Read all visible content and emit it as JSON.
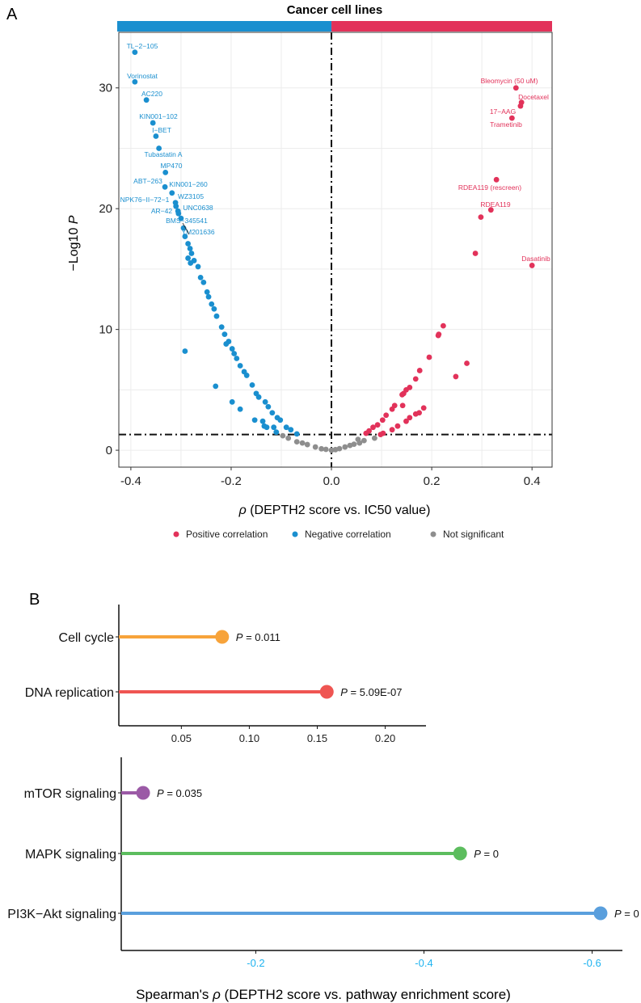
{
  "chart_data": [
    {
      "panel": "A",
      "type": "scatter",
      "title": "Cancer cell lines",
      "xlabel_symbol": "ρ",
      "xlabel": "(DEPTH2 score vs. IC50 value)",
      "ylabel_prefix": "−Log10",
      "ylabel_symbol": "P",
      "xlim": [
        -0.424,
        0.44
      ],
      "ylim": [
        -1.4,
        34.6
      ],
      "xticks": [
        "-0.4",
        "-0.2",
        "0.0",
        "0.2",
        "0.4"
      ],
      "xtick_values": [
        -0.4,
        -0.2,
        0.0,
        0.2,
        0.4
      ],
      "yticks": [
        "0",
        "10",
        "20",
        "30"
      ],
      "ytick_values": [
        0,
        10,
        20,
        30
      ],
      "grid": true,
      "reference_lines": {
        "x": 0,
        "y": 1.3
      },
      "header_colors": {
        "negative": "#1a8fcf",
        "positive": "#e2325a"
      },
      "legend_position": "bottom",
      "legend": [
        {
          "label": "Positive correlation",
          "color": "#e2325a"
        },
        {
          "label": "Negative correlation",
          "color": "#1a8fcf"
        },
        {
          "label": "Not significant",
          "color": "#8e8e8e"
        }
      ],
      "series": [
        {
          "name": "Negative correlation",
          "color": "#1a8fcf",
          "points": [
            {
              "x": -0.392,
              "y": 32.95,
              "label": "TL−2−105"
            },
            {
              "x": -0.392,
              "y": 30.5,
              "label": "Vorinostat"
            },
            {
              "x": -0.369,
              "y": 29.0,
              "label": "AC220"
            },
            {
              "x": -0.356,
              "y": 27.1,
              "label": "KIN001−102"
            },
            {
              "x": -0.35,
              "y": 26.0,
              "label": "I−BET"
            },
            {
              "x": -0.344,
              "y": 25.0,
              "label": "Tubastatin A"
            },
            {
              "x": -0.331,
              "y": 23.0,
              "label": "MP470"
            },
            {
              "x": -0.332,
              "y": 21.8,
              "label": "ABT−263"
            },
            {
              "x": -0.318,
              "y": 21.3,
              "label": "KIN001−260"
            },
            {
              "x": -0.311,
              "y": 20.5,
              "label": "WZ3105"
            },
            {
              "x": -0.31,
              "y": 20.2,
              "label": "NPK76−II−72−1"
            },
            {
              "x": -0.306,
              "y": 19.8,
              "label": "UNC0638"
            },
            {
              "x": -0.305,
              "y": 19.6,
              "label": "AR−42"
            },
            {
              "x": -0.3,
              "y": 19.2,
              "label": "BMS−345541"
            },
            {
              "x": -0.295,
              "y": 18.4,
              "label": "YM201636"
            },
            {
              "x": -0.292,
              "y": 17.7
            },
            {
              "x": -0.286,
              "y": 17.1
            },
            {
              "x": -0.282,
              "y": 16.7
            },
            {
              "x": -0.279,
              "y": 16.3
            },
            {
              "x": -0.286,
              "y": 15.9
            },
            {
              "x": -0.274,
              "y": 15.7
            },
            {
              "x": -0.281,
              "y": 15.5
            },
            {
              "x": -0.266,
              "y": 15.2
            },
            {
              "x": -0.261,
              "y": 14.3
            },
            {
              "x": -0.255,
              "y": 13.9
            },
            {
              "x": -0.248,
              "y": 13.1
            },
            {
              "x": -0.245,
              "y": 12.7
            },
            {
              "x": -0.239,
              "y": 12.1
            },
            {
              "x": -0.234,
              "y": 11.7
            },
            {
              "x": -0.229,
              "y": 11.1
            },
            {
              "x": -0.219,
              "y": 10.2
            },
            {
              "x": -0.213,
              "y": 9.6
            },
            {
              "x": -0.205,
              "y": 9.0
            },
            {
              "x": -0.21,
              "y": 8.8
            },
            {
              "x": -0.198,
              "y": 8.4
            },
            {
              "x": -0.194,
              "y": 8.0
            },
            {
              "x": -0.189,
              "y": 7.6
            },
            {
              "x": -0.182,
              "y": 7.0
            },
            {
              "x": -0.174,
              "y": 6.5
            },
            {
              "x": -0.169,
              "y": 6.2
            },
            {
              "x": -0.158,
              "y": 5.4
            },
            {
              "x": -0.15,
              "y": 4.7
            },
            {
              "x": -0.145,
              "y": 4.4
            },
            {
              "x": -0.132,
              "y": 4.0
            },
            {
              "x": -0.126,
              "y": 3.6
            },
            {
              "x": -0.118,
              "y": 3.1
            },
            {
              "x": -0.108,
              "y": 2.7
            },
            {
              "x": -0.102,
              "y": 2.5
            },
            {
              "x": -0.09,
              "y": 1.9
            },
            {
              "x": -0.081,
              "y": 1.7
            },
            {
              "x": -0.069,
              "y": 1.35
            },
            {
              "x": -0.292,
              "y": 8.2
            },
            {
              "x": -0.231,
              "y": 5.3
            },
            {
              "x": -0.198,
              "y": 4.0
            },
            {
              "x": -0.182,
              "y": 3.4
            },
            {
              "x": -0.153,
              "y": 2.5
            },
            {
              "x": -0.137,
              "y": 2.4
            },
            {
              "x": -0.134,
              "y": 2.0
            },
            {
              "x": -0.129,
              "y": 1.9
            },
            {
              "x": -0.115,
              "y": 1.9
            },
            {
              "x": -0.11,
              "y": 1.5
            }
          ]
        },
        {
          "name": "Positive correlation",
          "color": "#e2325a",
          "points": [
            {
              "x": 0.368,
              "y": 30.0,
              "label": "Bleomycin (50 uM)"
            },
            {
              "x": 0.379,
              "y": 28.8,
              "label": "Docetaxel"
            },
            {
              "x": 0.377,
              "y": 28.5,
              "label": "17−AAG"
            },
            {
              "x": 0.36,
              "y": 27.5,
              "label": "Trametinib"
            },
            {
              "x": 0.329,
              "y": 22.4,
              "label": "RDEA119 (rescreen)"
            },
            {
              "x": 0.318,
              "y": 19.9,
              "label": "RDEA119"
            },
            {
              "x": 0.4,
              "y": 15.3,
              "label": "Dasatinib"
            },
            {
              "x": 0.298,
              "y": 19.3
            },
            {
              "x": 0.287,
              "y": 16.3
            },
            {
              "x": 0.223,
              "y": 10.3
            },
            {
              "x": 0.213,
              "y": 9.5
            },
            {
              "x": 0.214,
              "y": 9.6
            },
            {
              "x": 0.195,
              "y": 7.7
            },
            {
              "x": 0.176,
              "y": 6.6
            },
            {
              "x": 0.168,
              "y": 5.9
            },
            {
              "x": 0.156,
              "y": 5.2
            },
            {
              "x": 0.149,
              "y": 5.0
            },
            {
              "x": 0.144,
              "y": 4.7
            },
            {
              "x": 0.141,
              "y": 4.6
            },
            {
              "x": 0.126,
              "y": 3.7
            },
            {
              "x": 0.121,
              "y": 3.4
            },
            {
              "x": 0.109,
              "y": 2.9
            },
            {
              "x": 0.102,
              "y": 2.5
            },
            {
              "x": 0.092,
              "y": 2.1
            },
            {
              "x": 0.083,
              "y": 1.9
            },
            {
              "x": 0.075,
              "y": 1.6
            },
            {
              "x": 0.069,
              "y": 1.4
            },
            {
              "x": 0.27,
              "y": 7.2
            },
            {
              "x": 0.248,
              "y": 6.1
            },
            {
              "x": 0.184,
              "y": 3.5
            },
            {
              "x": 0.175,
              "y": 3.1
            },
            {
              "x": 0.168,
              "y": 3.0
            },
            {
              "x": 0.156,
              "y": 2.7
            },
            {
              "x": 0.149,
              "y": 2.4
            },
            {
              "x": 0.142,
              "y": 3.7
            },
            {
              "x": 0.132,
              "y": 2.0
            },
            {
              "x": 0.121,
              "y": 1.7
            },
            {
              "x": 0.103,
              "y": 1.4
            },
            {
              "x": 0.098,
              "y": 1.3
            }
          ]
        },
        {
          "name": "Not significant",
          "color": "#8e8e8e",
          "points": [
            {
              "x": 0.086,
              "y": 1.0
            },
            {
              "x": 0.056,
              "y": 0.6
            },
            {
              "x": 0.053,
              "y": 0.9
            },
            {
              "x": 0.037,
              "y": 0.4
            },
            {
              "x": 0.027,
              "y": 0.27
            },
            {
              "x": 0.016,
              "y": 0.13
            },
            {
              "x": 0.0,
              "y": 0.0
            },
            {
              "x": -0.011,
              "y": 0.07
            },
            {
              "x": -0.097,
              "y": 1.2
            },
            {
              "x": -0.086,
              "y": 1.0
            },
            {
              "x": -0.069,
              "y": 0.7
            },
            {
              "x": -0.048,
              "y": 0.47
            },
            {
              "x": -0.032,
              "y": 0.27
            },
            {
              "x": -0.02,
              "y": 0.12
            },
            {
              "x": 0.008,
              "y": 0.05
            },
            {
              "x": 0.045,
              "y": 0.5
            },
            {
              "x": 0.065,
              "y": 0.8
            },
            {
              "x": -0.058,
              "y": 0.6
            }
          ]
        }
      ]
    },
    {
      "panel": "B",
      "type": "lollipop",
      "xlim": [
        0.004,
        0.23
      ],
      "xticks": [
        "0.05",
        "0.10",
        "0.15",
        "0.20"
      ],
      "xtick_values": [
        0.05,
        0.1,
        0.15,
        0.2
      ],
      "categories": [
        "Cell cycle",
        "DNA replication"
      ],
      "values": [
        0.08,
        0.157
      ],
      "colors": [
        "#f7a33a",
        "#ef5552"
      ],
      "p_labels": [
        "0.011",
        "5.09E-07"
      ]
    },
    {
      "panel": "B",
      "type": "lollipop",
      "xlim": [
        -0.04,
        -0.636
      ],
      "xticks": [
        "-0.2",
        "-0.4",
        "-0.6"
      ],
      "xtick_values": [
        -0.2,
        -0.4,
        -0.6
      ],
      "tick_color": "#1fb3f0",
      "categories": [
        "mTOR signaling",
        "MAPK signaling",
        "PI3K−Akt signaling"
      ],
      "values": [
        -0.066,
        -0.443,
        -0.61
      ],
      "colors": [
        "#9b5aa6",
        "#5cbd5e",
        "#5a9fdd"
      ],
      "p_labels": [
        "0.035",
        "0",
        "0"
      ],
      "xlabel_prefix": "Spearman's",
      "xlabel_symbol": "ρ",
      "xlabel": " (DEPTH2 score vs. pathway enrichment score)"
    }
  ],
  "panel_labels": {
    "a": "A",
    "b": "B"
  },
  "p_prefix": "P",
  "p_equals": " = "
}
